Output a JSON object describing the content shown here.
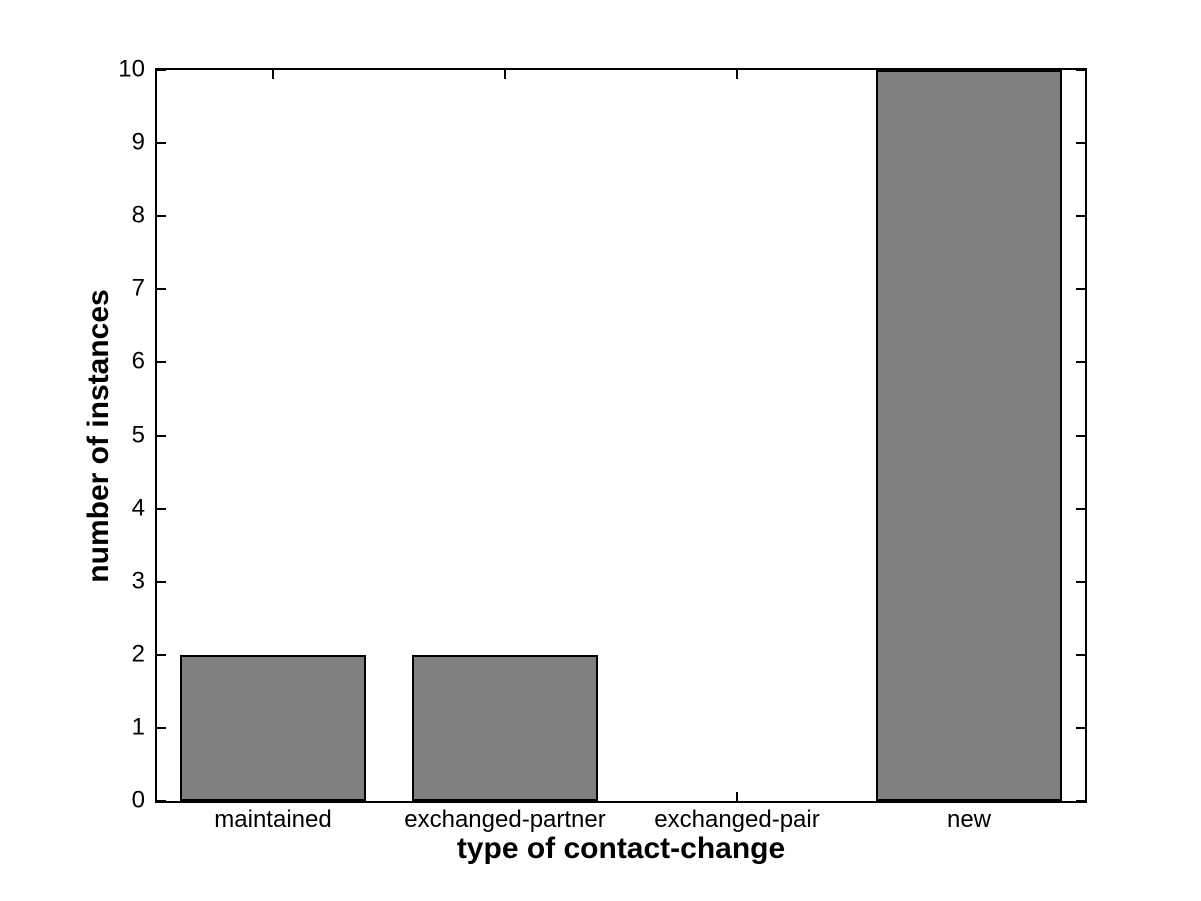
{
  "chart_data": {
    "type": "bar",
    "categories": [
      "maintained",
      "exchanged-partner",
      "exchanged-pair",
      "new"
    ],
    "values": [
      2,
      2,
      0,
      10
    ],
    "title": "",
    "xlabel": "type of contact-change",
    "ylabel": "number of instances",
    "ylim": [
      0,
      10
    ],
    "yticks": [
      0,
      1,
      2,
      3,
      4,
      5,
      6,
      7,
      8,
      9,
      10
    ],
    "bar_width_fraction": 0.8,
    "grid": false,
    "legend_position": "none",
    "colors": {
      "bar_fill": "#808080",
      "bar_edge": "#000000",
      "axis": "#000000",
      "background": "#ffffff",
      "text": "#000000"
    }
  }
}
